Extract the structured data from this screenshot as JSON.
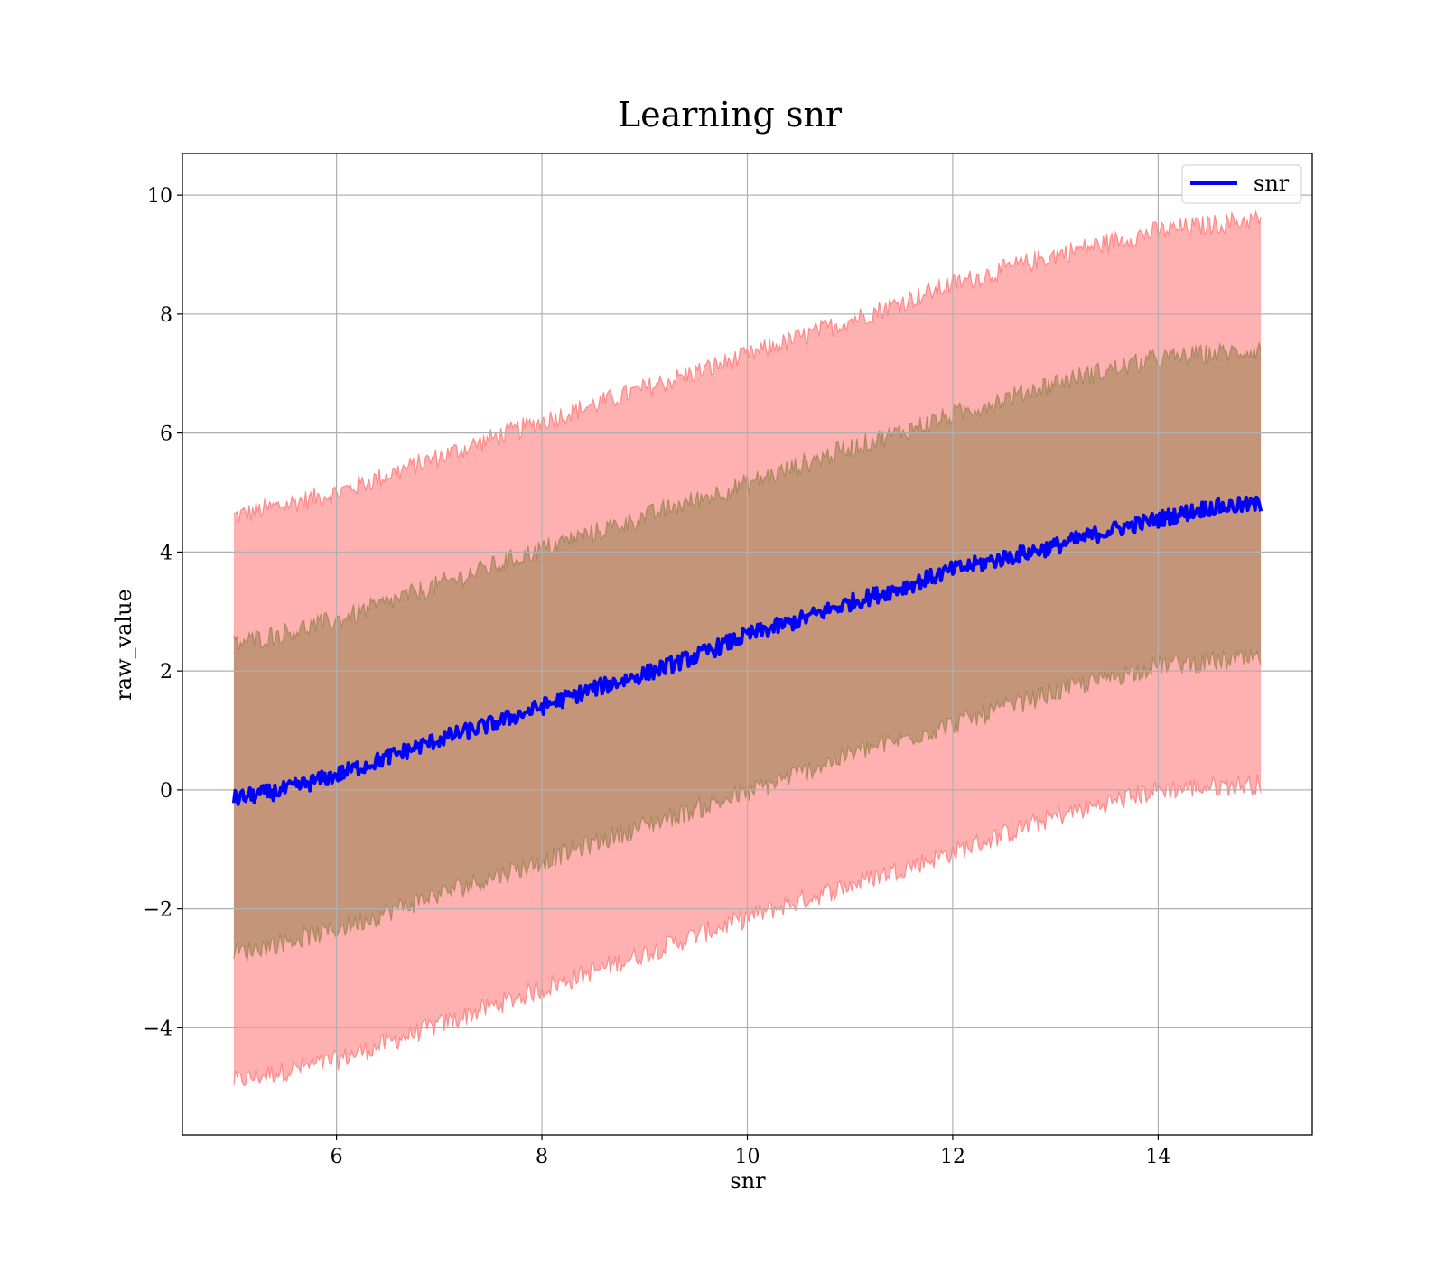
{
  "chart_data": {
    "type": "line",
    "title": "Learning snr",
    "xlabel": "snr",
    "ylabel": "raw_value",
    "xlim": [
      4.5,
      15.5
    ],
    "ylim": [
      -5.8,
      10.7
    ],
    "xticks": [
      6,
      8,
      10,
      12,
      14
    ],
    "yticks": [
      -4,
      -2,
      0,
      2,
      4,
      6,
      8,
      10
    ],
    "xtick_labels": [
      "6",
      "8",
      "10",
      "12",
      "14"
    ],
    "ytick_labels": [
      "−4",
      "−2",
      "0",
      "2",
      "4",
      "6",
      "8",
      "10"
    ],
    "grid": true,
    "legend": {
      "position": "top-right",
      "entries": [
        "snr"
      ]
    },
    "x_range": [
      5,
      15
    ],
    "series": [
      {
        "name": "snr",
        "color": "#0000ff",
        "x": [
          5,
          5.5,
          6,
          6.5,
          7,
          7.5,
          8,
          8.5,
          9,
          9.5,
          10,
          10.5,
          11,
          11.5,
          12,
          12.5,
          13,
          13.5,
          14,
          14.5,
          15
        ],
        "values": [
          -0.15,
          0.0,
          0.25,
          0.55,
          0.85,
          1.1,
          1.4,
          1.7,
          1.95,
          2.25,
          2.6,
          2.85,
          3.15,
          3.4,
          3.7,
          3.9,
          4.1,
          4.35,
          4.55,
          4.75,
          4.8
        ]
      }
    ],
    "bands": [
      {
        "color": "#ff5a5a",
        "x": [
          5,
          6,
          7,
          8,
          9,
          10,
          11,
          12,
          13,
          14,
          15
        ],
        "lower": [
          -4.9,
          -4.55,
          -3.95,
          -3.35,
          -2.75,
          -2.15,
          -1.6,
          -1.05,
          -0.45,
          0.0,
          0.1
        ],
        "upper": [
          4.6,
          5.0,
          5.6,
          6.2,
          6.75,
          7.3,
          7.9,
          8.5,
          9.0,
          9.4,
          9.6
        ]
      },
      {
        "color": "#8a7a40",
        "x": [
          5,
          6,
          7,
          8,
          9,
          10,
          11,
          12,
          13,
          14,
          15
        ],
        "lower": [
          -2.75,
          -2.35,
          -1.75,
          -1.2,
          -0.6,
          -0.05,
          0.6,
          1.1,
          1.65,
          2.1,
          2.2
        ],
        "upper": [
          2.45,
          2.85,
          3.45,
          4.05,
          4.6,
          5.15,
          5.75,
          6.3,
          6.85,
          7.25,
          7.4
        ]
      }
    ]
  }
}
